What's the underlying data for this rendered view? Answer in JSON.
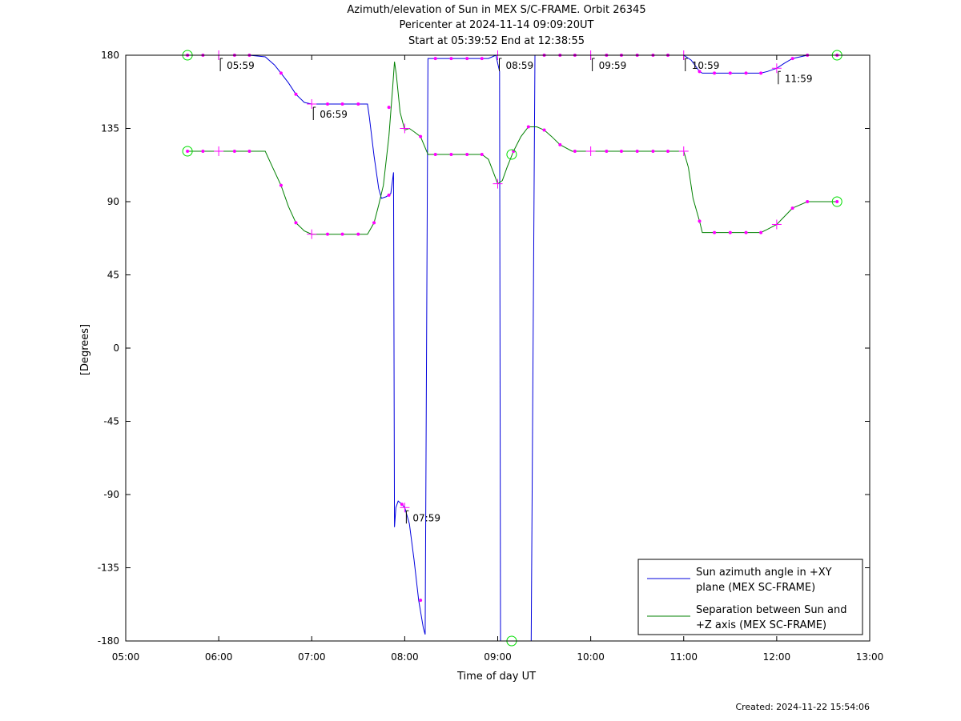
{
  "titles": {
    "line1": "Azimuth/elevation of Sun in MEX S/C-FRAME.  Orbit 26345",
    "line2": "Pericenter at 2024-11-14 09:09:20UT",
    "line3": "Start at 05:39:52 End at 12:38:55"
  },
  "created": "Created: 2024-11-22 15:54:06",
  "chart_data": {
    "type": "line",
    "xlabel": "Time of day UT",
    "ylabel": "[Degrees]",
    "xlim": [
      5.0,
      13.0
    ],
    "ylim": [
      -180,
      180
    ],
    "x_ticks": [
      5,
      6,
      7,
      8,
      9,
      10,
      11,
      12,
      13
    ],
    "x_tick_labels": [
      "05:00",
      "06:00",
      "07:00",
      "08:00",
      "09:00",
      "10:00",
      "11:00",
      "12:00",
      "13:00"
    ],
    "y_ticks": [
      180,
      135,
      90,
      45,
      0,
      -45,
      -90,
      -135,
      -180
    ],
    "y_tick_labels": [
      "180",
      "135",
      "90",
      "45",
      "0",
      "-45",
      "-90",
      "-135",
      "-180"
    ],
    "grid": false,
    "legend_position": "bottom-right",
    "colors": {
      "azimuth": "#0000dd",
      "separation": "#008000",
      "markers": "#ff00ff",
      "endpoints": "#00dd00"
    },
    "series": [
      {
        "name": "Sun azimuth angle in +XY plane (MEX SC-FRAME)",
        "legend_lines": [
          "Sun azimuth angle in +XY",
          "plane (MEX SC-FRAME)"
        ],
        "color": "#0000dd",
        "points": [
          [
            5.664,
            180
          ],
          [
            5.83,
            180
          ],
          [
            6.0,
            180
          ],
          [
            6.17,
            180
          ],
          [
            6.33,
            180
          ],
          [
            6.5,
            179
          ],
          [
            6.6,
            174
          ],
          [
            6.67,
            169
          ],
          [
            6.75,
            163
          ],
          [
            6.83,
            156
          ],
          [
            6.92,
            151
          ],
          [
            7.0,
            150
          ],
          [
            7.17,
            150
          ],
          [
            7.33,
            150
          ],
          [
            7.5,
            150
          ],
          [
            7.6,
            150
          ],
          [
            7.62,
            142
          ],
          [
            7.67,
            118
          ],
          [
            7.72,
            98
          ],
          [
            7.75,
            92
          ],
          [
            7.8,
            93
          ],
          [
            7.85,
            95
          ],
          [
            7.88,
            108
          ],
          [
            7.89,
            -110
          ],
          [
            7.905,
            -98
          ],
          [
            7.93,
            -94
          ],
          [
            7.97,
            -96
          ],
          [
            8.0,
            -98
          ],
          [
            8.05,
            -108
          ],
          [
            8.1,
            -130
          ],
          [
            8.15,
            -155
          ],
          [
            8.2,
            -172
          ],
          [
            8.22,
            -176
          ],
          [
            8.25,
            178
          ],
          [
            8.33,
            178
          ],
          [
            8.5,
            178
          ],
          [
            8.67,
            178
          ],
          [
            8.83,
            178
          ],
          [
            8.9,
            178
          ],
          [
            8.98,
            180
          ],
          [
            9.02,
            170
          ],
          [
            9.03,
            -180
          ],
          [
            9.1,
            -180
          ],
          [
            9.2,
            -180
          ],
          [
            9.3,
            -180
          ],
          [
            9.36,
            -180
          ],
          [
            9.4,
            180
          ],
          [
            9.5,
            180
          ],
          [
            9.67,
            180
          ],
          [
            9.83,
            180
          ],
          [
            10.0,
            180
          ],
          [
            10.17,
            180
          ],
          [
            10.33,
            180
          ],
          [
            10.5,
            180
          ],
          [
            10.67,
            180
          ],
          [
            10.83,
            180
          ],
          [
            11.0,
            180
          ],
          [
            11.08,
            177
          ],
          [
            11.17,
            170
          ],
          [
            11.2,
            169
          ],
          [
            11.33,
            169
          ],
          [
            11.5,
            169
          ],
          [
            11.67,
            169
          ],
          [
            11.83,
            169
          ],
          [
            11.9,
            170
          ],
          [
            12.0,
            172
          ],
          [
            12.08,
            175
          ],
          [
            12.17,
            178
          ],
          [
            12.33,
            180
          ],
          [
            12.5,
            180
          ],
          [
            12.649,
            180
          ]
        ],
        "markers": [
          [
            5.664,
            180
          ],
          [
            5.83,
            180
          ],
          [
            6.17,
            180
          ],
          [
            6.33,
            180
          ],
          [
            6.67,
            169
          ],
          [
            6.83,
            156
          ],
          [
            7.17,
            150
          ],
          [
            7.33,
            150
          ],
          [
            7.5,
            150
          ],
          [
            7.83,
            94
          ],
          [
            7.97,
            -96
          ],
          [
            8.17,
            -155
          ],
          [
            8.33,
            178
          ],
          [
            8.5,
            178
          ],
          [
            8.67,
            178
          ],
          [
            8.83,
            178
          ],
          [
            9.5,
            180
          ],
          [
            9.67,
            180
          ],
          [
            9.83,
            180
          ],
          [
            10.17,
            180
          ],
          [
            10.33,
            180
          ],
          [
            10.5,
            180
          ],
          [
            10.67,
            180
          ],
          [
            10.83,
            180
          ],
          [
            11.17,
            170
          ],
          [
            11.33,
            169
          ],
          [
            11.5,
            169
          ],
          [
            11.67,
            169
          ],
          [
            11.83,
            169
          ],
          [
            12.17,
            178
          ],
          [
            12.33,
            180
          ],
          [
            12.649,
            180
          ]
        ],
        "crosses": [
          [
            6.0,
            180
          ],
          [
            7.0,
            150
          ],
          [
            8.0,
            -98
          ],
          [
            9.0,
            180
          ],
          [
            10.0,
            180
          ],
          [
            11.0,
            180
          ],
          [
            12.0,
            172
          ]
        ]
      },
      {
        "name": "Separation between Sun and +Z axis (MEX SC-FRAME)",
        "legend_lines": [
          "Separation between Sun and",
          "+Z axis (MEX SC-FRAME)"
        ],
        "color": "#008000",
        "points": [
          [
            5.664,
            121
          ],
          [
            5.83,
            121
          ],
          [
            6.0,
            121
          ],
          [
            6.17,
            121
          ],
          [
            6.33,
            121
          ],
          [
            6.5,
            121
          ],
          [
            6.58,
            111
          ],
          [
            6.67,
            100
          ],
          [
            6.75,
            87
          ],
          [
            6.83,
            77
          ],
          [
            6.92,
            72
          ],
          [
            7.0,
            70
          ],
          [
            7.17,
            70
          ],
          [
            7.33,
            70
          ],
          [
            7.5,
            70
          ],
          [
            7.6,
            70
          ],
          [
            7.67,
            77
          ],
          [
            7.72,
            88
          ],
          [
            7.77,
            100
          ],
          [
            7.83,
            130
          ],
          [
            7.87,
            160
          ],
          [
            7.89,
            176
          ],
          [
            7.91,
            168
          ],
          [
            7.95,
            145
          ],
          [
            8.0,
            134
          ],
          [
            8.05,
            135
          ],
          [
            8.1,
            133
          ],
          [
            8.17,
            130
          ],
          [
            8.25,
            119
          ],
          [
            8.33,
            119
          ],
          [
            8.5,
            119
          ],
          [
            8.67,
            119
          ],
          [
            8.83,
            119
          ],
          [
            8.9,
            116
          ],
          [
            9.0,
            101
          ],
          [
            9.05,
            103
          ],
          [
            9.1,
            111
          ],
          [
            9.17,
            121
          ],
          [
            9.25,
            130
          ],
          [
            9.33,
            136
          ],
          [
            9.42,
            136
          ],
          [
            9.5,
            134
          ],
          [
            9.58,
            130
          ],
          [
            9.67,
            125
          ],
          [
            9.8,
            121
          ],
          [
            10.0,
            121
          ],
          [
            10.17,
            121
          ],
          [
            10.33,
            121
          ],
          [
            10.5,
            121
          ],
          [
            10.67,
            121
          ],
          [
            10.83,
            121
          ],
          [
            11.0,
            121
          ],
          [
            11.05,
            111
          ],
          [
            11.1,
            92
          ],
          [
            11.17,
            78
          ],
          [
            11.2,
            71
          ],
          [
            11.33,
            71
          ],
          [
            11.5,
            71
          ],
          [
            11.67,
            71
          ],
          [
            11.83,
            71
          ],
          [
            11.9,
            73
          ],
          [
            12.0,
            76
          ],
          [
            12.17,
            86
          ],
          [
            12.33,
            90
          ],
          [
            12.5,
            90
          ],
          [
            12.649,
            90
          ]
        ],
        "markers": [
          [
            5.664,
            121
          ],
          [
            5.83,
            121
          ],
          [
            6.17,
            121
          ],
          [
            6.33,
            121
          ],
          [
            6.67,
            100
          ],
          [
            6.83,
            77
          ],
          [
            7.17,
            70
          ],
          [
            7.33,
            70
          ],
          [
            7.5,
            70
          ],
          [
            7.67,
            77
          ],
          [
            7.83,
            148
          ],
          [
            8.17,
            130
          ],
          [
            8.33,
            119
          ],
          [
            8.5,
            119
          ],
          [
            8.67,
            119
          ],
          [
            8.83,
            119
          ],
          [
            9.17,
            121
          ],
          [
            9.33,
            136
          ],
          [
            9.5,
            134
          ],
          [
            9.67,
            125
          ],
          [
            9.83,
            121
          ],
          [
            10.17,
            121
          ],
          [
            10.33,
            121
          ],
          [
            10.5,
            121
          ],
          [
            10.67,
            121
          ],
          [
            10.83,
            121
          ],
          [
            11.17,
            78
          ],
          [
            11.33,
            71
          ],
          [
            11.5,
            71
          ],
          [
            11.67,
            71
          ],
          [
            11.83,
            71
          ],
          [
            12.17,
            86
          ],
          [
            12.33,
            90
          ],
          [
            12.649,
            90
          ]
        ],
        "crosses": [
          [
            6.0,
            121
          ],
          [
            7.0,
            70
          ],
          [
            8.0,
            135
          ],
          [
            9.0,
            101
          ],
          [
            10.0,
            121
          ],
          [
            11.0,
            121
          ],
          [
            12.0,
            76
          ]
        ]
      }
    ],
    "endpoint_circles": [
      [
        5.664,
        180
      ],
      [
        5.664,
        121
      ],
      [
        12.649,
        180
      ],
      [
        12.649,
        90
      ],
      [
        9.15,
        119
      ],
      [
        9.15,
        -180
      ]
    ],
    "annotations": [
      {
        "text": "05:59",
        "x": 6.0,
        "y": 180
      },
      {
        "text": "06:59",
        "x": 7.0,
        "y": 150
      },
      {
        "text": "07:59",
        "x": 8.0,
        "y": -98
      },
      {
        "text": "08:59",
        "x": 9.0,
        "y": 180
      },
      {
        "text": "09:59",
        "x": 10.0,
        "y": 180
      },
      {
        "text": "10:59",
        "x": 11.0,
        "y": 180
      },
      {
        "text": "11:59",
        "x": 12.0,
        "y": 172
      }
    ]
  }
}
